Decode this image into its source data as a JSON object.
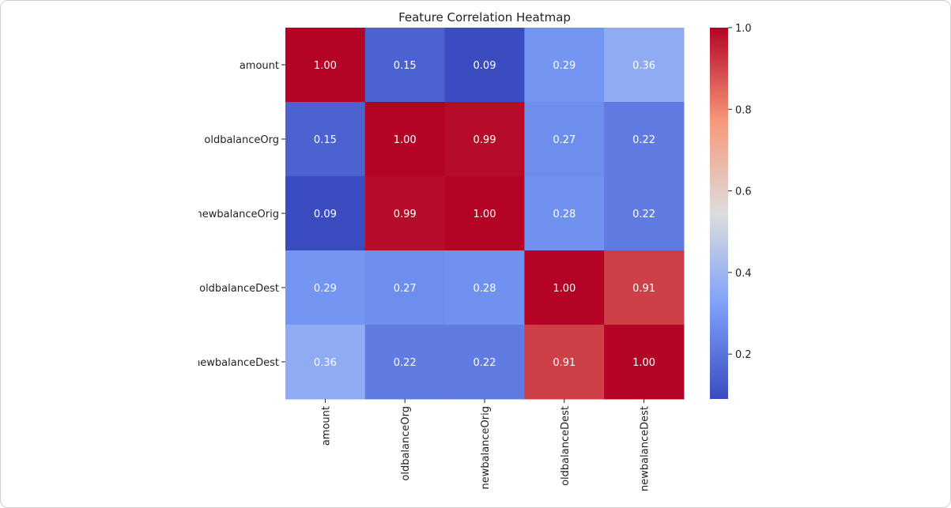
{
  "chart_data": {
    "type": "heatmap",
    "title": "Feature Correlation Heatmap",
    "row_labels": [
      "amount",
      "oldbalanceOrg",
      "newbalanceOrig",
      "oldbalanceDest",
      "newbalanceDest"
    ],
    "col_labels": [
      "amount",
      "oldbalanceOrg",
      "newbalanceOrig",
      "oldbalanceDest",
      "newbalanceDest"
    ],
    "values": [
      [
        1.0,
        0.15,
        0.09,
        0.29,
        0.36
      ],
      [
        0.15,
        1.0,
        0.99,
        0.27,
        0.22
      ],
      [
        0.09,
        0.99,
        1.0,
        0.28,
        0.22
      ],
      [
        0.29,
        0.27,
        0.28,
        1.0,
        0.91
      ],
      [
        0.36,
        0.22,
        0.22,
        0.91,
        1.0
      ]
    ],
    "cell_labels": [
      [
        "1.00",
        "0.15",
        "0.09",
        "0.29",
        "0.36"
      ],
      [
        "0.15",
        "1.00",
        "0.99",
        "0.27",
        "0.22"
      ],
      [
        "0.09",
        "0.99",
        "1.00",
        "0.28",
        "0.22"
      ],
      [
        "0.29",
        "0.27",
        "0.28",
        "1.00",
        "0.91"
      ],
      [
        "0.36",
        "0.22",
        "0.22",
        "0.91",
        "1.00"
      ]
    ],
    "colormap": "coolwarm",
    "colorbar": {
      "range": [
        0.09,
        1.0
      ],
      "ticks": [
        0.2,
        0.4,
        0.6,
        0.8,
        1.0
      ],
      "tick_labels": [
        "0.2",
        "0.4",
        "0.6",
        "0.8",
        "1.0"
      ]
    }
  }
}
